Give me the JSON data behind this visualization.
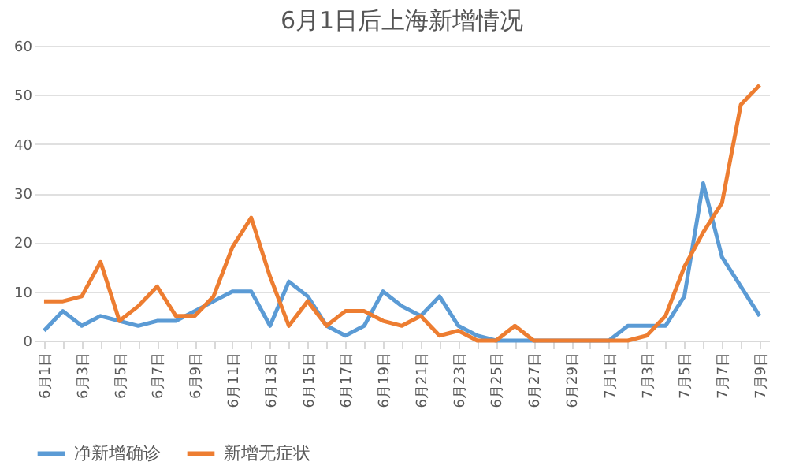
{
  "chart_data": {
    "type": "line",
    "title": "6月1日后上海新增情况",
    "categories": [
      "6月1日",
      null,
      "6月3日",
      null,
      "6月5日",
      null,
      "6月7日",
      null,
      "6月9日",
      null,
      "6月11日",
      null,
      "6月13日",
      null,
      "6月15日",
      null,
      "6月17日",
      null,
      "6月19日",
      null,
      "6月21日",
      null,
      "6月23日",
      null,
      "6月25日",
      null,
      "6月27日",
      null,
      "6月29日",
      null,
      "7月1日",
      null,
      "7月3日",
      null,
      "7月5日",
      null,
      "7月7日",
      null,
      "7月9日"
    ],
    "series": [
      {
        "name": "净新增确诊",
        "color": "#5b9bd5",
        "values": [
          2,
          6,
          3,
          5,
          4,
          3,
          4,
          4,
          6,
          8,
          10,
          10,
          3,
          12,
          9,
          3,
          1,
          3,
          10,
          7,
          5,
          9,
          3,
          1,
          0,
          0,
          0,
          0,
          0,
          0,
          0,
          3,
          3,
          3,
          9,
          32,
          17,
          11,
          5
        ]
      },
      {
        "name": "新增无症状",
        "color": "#ed7d31",
        "values": [
          8,
          8,
          9,
          16,
          4,
          7,
          11,
          5,
          5,
          9,
          19,
          25,
          13,
          3,
          8,
          3,
          6,
          6,
          4,
          3,
          5,
          1,
          2,
          0,
          0,
          3,
          0,
          0,
          0,
          0,
          0,
          0,
          1,
          5,
          15,
          22,
          28,
          48,
          52
        ]
      }
    ],
    "ylim": [
      0,
      60
    ],
    "yticks": [
      0,
      10,
      20,
      30,
      40,
      50,
      60
    ],
    "grid": "y",
    "legend": "bottom",
    "marker": "none",
    "line_style": "solid"
  }
}
